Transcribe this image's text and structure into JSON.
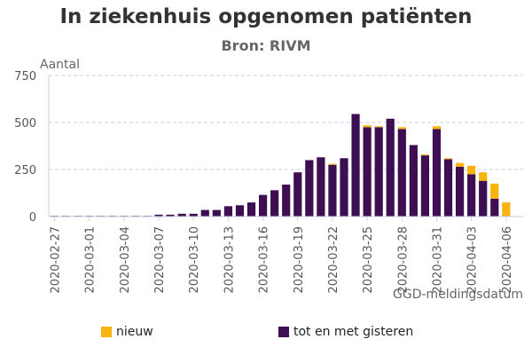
{
  "chart_data": {
    "type": "bar",
    "stacked": true,
    "title": "In ziekenhuis opgenomen patiënten",
    "subtitle": "Bron: RIVM",
    "ylabel": "Aantal",
    "xlabel": "GGD-meldingsdatum",
    "ylim": [
      0,
      750
    ],
    "yticks": [
      0,
      250,
      500,
      750
    ],
    "grid": true,
    "legend_position": "bottom",
    "x_tick_labels": [
      "2020-02-27",
      "2020-03-01",
      "2020-03-04",
      "2020-03-07",
      "2020-03-10",
      "2020-03-13",
      "2020-03-16",
      "2020-03-19",
      "2020-03-22",
      "2020-03-25",
      "2020-03-28",
      "2020-03-31",
      "2020-04-03",
      "2020-04-06"
    ],
    "categories": [
      "2020-02-27",
      "2020-02-28",
      "2020-02-29",
      "2020-03-01",
      "2020-03-02",
      "2020-03-03",
      "2020-03-04",
      "2020-03-05",
      "2020-03-06",
      "2020-03-07",
      "2020-03-08",
      "2020-03-09",
      "2020-03-10",
      "2020-03-11",
      "2020-03-12",
      "2020-03-13",
      "2020-03-14",
      "2020-03-15",
      "2020-03-16",
      "2020-03-17",
      "2020-03-18",
      "2020-03-19",
      "2020-03-20",
      "2020-03-21",
      "2020-03-22",
      "2020-03-23",
      "2020-03-24",
      "2020-03-25",
      "2020-03-26",
      "2020-03-27",
      "2020-03-28",
      "2020-03-29",
      "2020-03-30",
      "2020-03-31",
      "2020-04-01",
      "2020-04-02",
      "2020-04-03",
      "2020-04-04",
      "2020-04-05",
      "2020-04-06"
    ],
    "series": [
      {
        "name": "tot en met gisteren",
        "color": "#3d0f52",
        "values": [
          1,
          1,
          1,
          1,
          1,
          1,
          1,
          1,
          1,
          10,
          10,
          15,
          15,
          35,
          35,
          55,
          60,
          75,
          115,
          140,
          170,
          235,
          300,
          315,
          275,
          310,
          545,
          475,
          475,
          520,
          465,
          380,
          325,
          465,
          305,
          265,
          225,
          190,
          95,
          0
        ]
      },
      {
        "name": "nieuw",
        "color": "#f9b30f",
        "values": [
          0,
          0,
          0,
          0,
          0,
          0,
          0,
          0,
          0,
          0,
          0,
          0,
          0,
          0,
          0,
          0,
          0,
          0,
          0,
          0,
          0,
          0,
          0,
          0,
          5,
          0,
          0,
          10,
          5,
          0,
          10,
          0,
          5,
          15,
          5,
          20,
          45,
          45,
          80,
          75
        ]
      }
    ]
  }
}
